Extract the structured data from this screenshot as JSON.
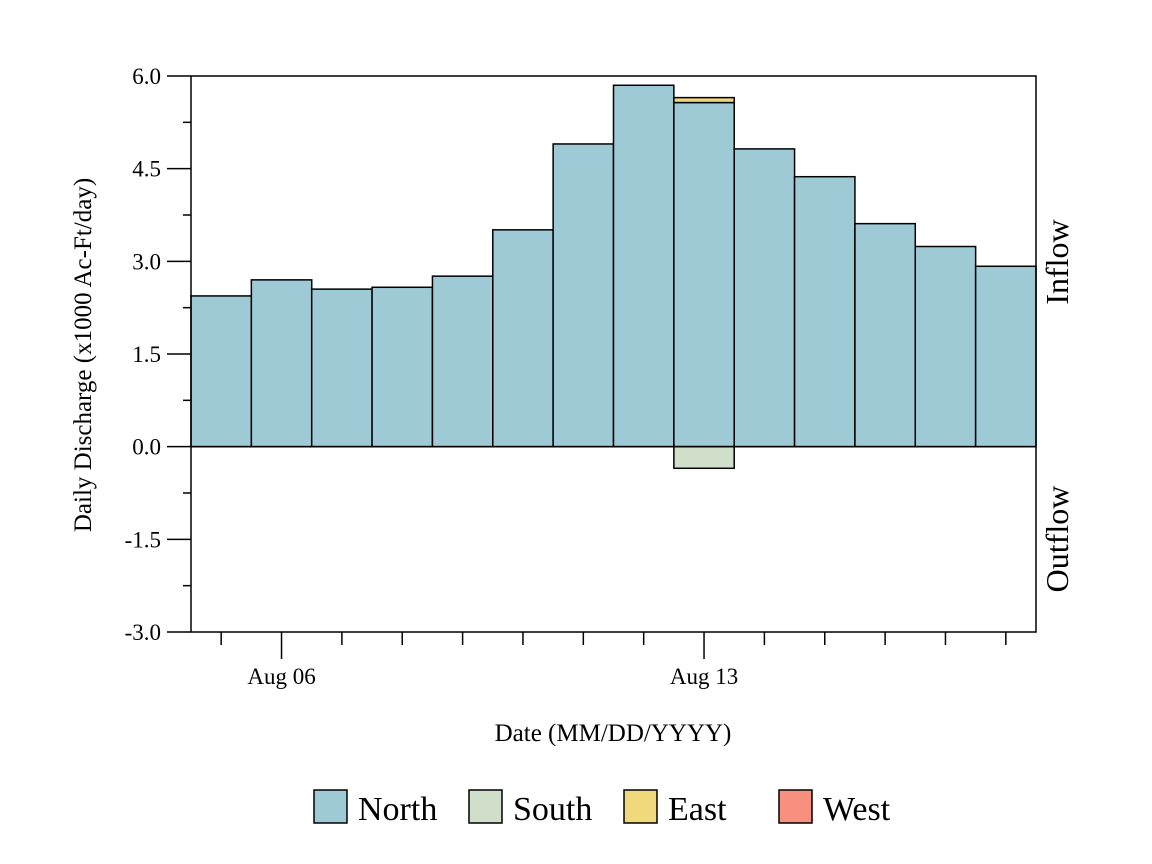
{
  "chart_data": {
    "type": "bar",
    "stacked": true,
    "xlabel": "Date (MM/DD/YYYY)",
    "ylabel": "Daily Discharge (x1000 Ac-Ft/day)",
    "ylim": [
      -3.0,
      6.0
    ],
    "y_ticks": [
      "6.0",
      "4.5",
      "3.0",
      "1.5",
      "0.0",
      "-1.5",
      "-3.0"
    ],
    "y_tick_values": [
      6.0,
      4.5,
      3.0,
      1.5,
      0.0,
      -1.5,
      -3.0
    ],
    "x_tick_labels": [
      {
        "label": "Aug 06",
        "date": "08/06"
      },
      {
        "label": "Aug 13",
        "date": "08/13"
      }
    ],
    "categories": [
      "08/05",
      "08/06",
      "08/07",
      "08/08",
      "08/09",
      "08/10",
      "08/11",
      "08/12",
      "08/13",
      "08/14",
      "08/15",
      "08/16",
      "08/17",
      "08/18"
    ],
    "series": [
      {
        "name": "North",
        "color": "#9ecad6",
        "values": [
          2.44,
          2.7,
          2.55,
          2.58,
          2.76,
          3.51,
          4.9,
          5.85,
          5.57,
          4.82,
          4.37,
          3.61,
          3.24,
          2.92
        ]
      },
      {
        "name": "South",
        "color": "#d0dfca",
        "values": [
          0,
          0,
          0,
          0,
          0,
          0,
          0,
          0,
          -0.35,
          0,
          0,
          0,
          0,
          0
        ]
      },
      {
        "name": "East",
        "color": "#f0d87c",
        "values": [
          0,
          0,
          0,
          0,
          0,
          0,
          0,
          0,
          0.08,
          0,
          0,
          0,
          0,
          0
        ]
      },
      {
        "name": "West",
        "color": "#f89080",
        "values": [
          0,
          0,
          0,
          0,
          0,
          0,
          0,
          0,
          0,
          0,
          0,
          0,
          0,
          0
        ]
      }
    ],
    "side_labels": {
      "upper": "Inflow",
      "lower": "Outflow"
    },
    "legend_position": "bottom",
    "grid": false
  }
}
